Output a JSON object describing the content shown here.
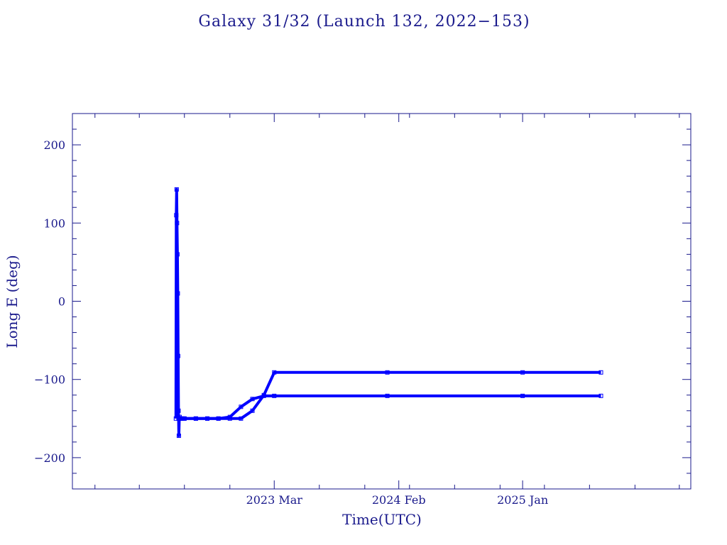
{
  "chart_data": {
    "type": "line",
    "title": "Galaxy 31/32 (Launch 132, 2022-153)",
    "title_display": "Galaxy 31/32 (Launch 132, 2022−153)",
    "xlabel": "Time(UTC)",
    "ylabel": "Long E (deg)",
    "xlim": [
      "2021-09-01",
      "2026-04-01"
    ],
    "ylim": [
      -240,
      240
    ],
    "x_ticks": [
      {
        "date": "2023-03-01",
        "label": "2023 Mar"
      },
      {
        "date": "2024-02-01",
        "label": "2024 Feb"
      },
      {
        "date": "2025-01-01",
        "label": "2025 Jan"
      }
    ],
    "y_ticks": [
      {
        "value": 200,
        "label": "200"
      },
      {
        "value": 100,
        "label": "100"
      },
      {
        "value": 0,
        "label": "0"
      },
      {
        "value": -100,
        "label": "−100"
      },
      {
        "value": -200,
        "label": "−200"
      }
    ],
    "grid": false,
    "colors": {
      "series": "#0000ff",
      "axis": "#1a1a8c"
    },
    "series": [
      {
        "x": [
          "2022-06-08",
          "2022-06-09",
          "2022-06-10",
          "2022-06-11",
          "2022-06-12",
          "2022-06-13",
          "2022-06-14",
          "2022-06-15",
          "2022-06-16",
          "2022-06-17",
          "2022-06-18",
          "2022-06-20",
          "2022-06-22",
          "2022-06-25",
          "2022-07-01",
          "2022-08-01",
          "2022-09-01",
          "2022-10-01",
          "2022-11-01",
          "2022-12-01",
          "2023-01-01",
          "2023-02-01",
          "2023-03-01",
          "2024-01-01",
          "2025-01-01",
          "2025-08-01"
        ],
        "y": [
          -150,
          110,
          143,
          100,
          60,
          10,
          -70,
          -140,
          -172,
          -150,
          -148,
          -150,
          -150,
          -150,
          -150,
          -150,
          -150,
          -150,
          -150,
          -150,
          -140,
          -120,
          -91,
          -91,
          -91,
          -91
        ]
      },
      {
        "x": [
          "2022-06-15",
          "2022-07-01",
          "2022-08-01",
          "2022-09-01",
          "2022-10-01",
          "2022-11-01",
          "2022-12-01",
          "2023-01-01",
          "2023-02-01",
          "2023-03-01",
          "2024-01-01",
          "2025-01-01",
          "2025-08-01"
        ],
        "y": [
          -150,
          -150,
          -150,
          -150,
          -150,
          -148,
          -135,
          -125,
          -121,
          -121,
          -121,
          -121,
          -121
        ]
      }
    ]
  }
}
